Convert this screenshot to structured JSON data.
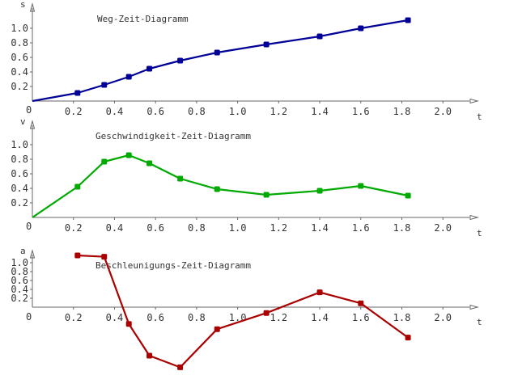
{
  "chart_data": [
    {
      "type": "line",
      "title": "Weg-Zeit-Diagramm",
      "xlabel": "t",
      "ylabel": "s",
      "origin_label": "0",
      "xlim": [
        0,
        2.2
      ],
      "ylim": [
        0,
        1.0
      ],
      "grid": false,
      "color": "#000099",
      "x_ticks": [
        "0.2",
        "0.4",
        "0.6",
        "0.8",
        "1.0",
        "1.2",
        "1.4",
        "1.6",
        "1.8",
        "2.0"
      ],
      "y_ticks": [
        "0.2",
        "0.4",
        "0.6",
        "0.8",
        "1.0"
      ],
      "x": [
        0,
        0.22,
        0.35,
        0.47,
        0.57,
        0.72,
        0.9,
        1.14,
        1.4,
        1.6,
        1.83
      ],
      "y": [
        0,
        0.1,
        0.2,
        0.3,
        0.4,
        0.5,
        0.6,
        0.7,
        0.8,
        0.9,
        1.0
      ],
      "markers": [
        false,
        true,
        true,
        true,
        true,
        true,
        true,
        true,
        true,
        true,
        true
      ]
    },
    {
      "type": "line",
      "title": "Geschwindigkeit-Zeit-Diagramm",
      "xlabel": "t",
      "ylabel": "v",
      "origin_label": "0",
      "xlim": [
        0,
        2.2
      ],
      "ylim": [
        0,
        1.0
      ],
      "grid": false,
      "color": "#00aa00",
      "x_ticks": [
        "0.2",
        "0.4",
        "0.6",
        "0.8",
        "1.0",
        "1.2",
        "1.4",
        "1.6",
        "1.8",
        "2.0"
      ],
      "y_ticks": [
        "0.2",
        "0.4",
        "0.6",
        "0.8",
        "1.0"
      ],
      "x": [
        0,
        0.22,
        0.35,
        0.47,
        0.57,
        0.72,
        0.9,
        1.14,
        1.4,
        1.6,
        1.83
      ],
      "y": [
        0,
        0.38,
        0.69,
        0.77,
        0.67,
        0.48,
        0.35,
        0.28,
        0.33,
        0.39,
        0.27
      ],
      "markers": [
        false,
        true,
        true,
        true,
        true,
        true,
        true,
        true,
        true,
        true,
        true
      ]
    },
    {
      "type": "line",
      "title": "Beschleunigungs-Zeit-Diagramm",
      "xlabel": "t",
      "ylabel": "a",
      "origin_label": "0",
      "xlim": [
        0,
        2.2
      ],
      "ylim": [
        -1.1,
        1.0
      ],
      "grid": false,
      "color": "#aa0000",
      "x_ticks": [
        "0.2",
        "0.4",
        "0.6",
        "0.8",
        "1.0",
        "1.2",
        "1.4",
        "1.6",
        "1.8",
        "2.0"
      ],
      "y_ticks": [
        "0.2",
        "0.4",
        "0.6",
        "0.8",
        "1.0"
      ],
      "x": [
        0.22,
        0.35,
        0.47,
        0.57,
        0.72,
        0.9,
        1.14,
        1.4,
        1.6,
        1.83
      ],
      "y": [
        0.8,
        0.78,
        -0.26,
        -0.75,
        -0.93,
        -0.34,
        -0.09,
        0.23,
        0.06,
        -0.47
      ],
      "markers": [
        true,
        true,
        true,
        true,
        true,
        true,
        true,
        true,
        true,
        true
      ]
    }
  ]
}
